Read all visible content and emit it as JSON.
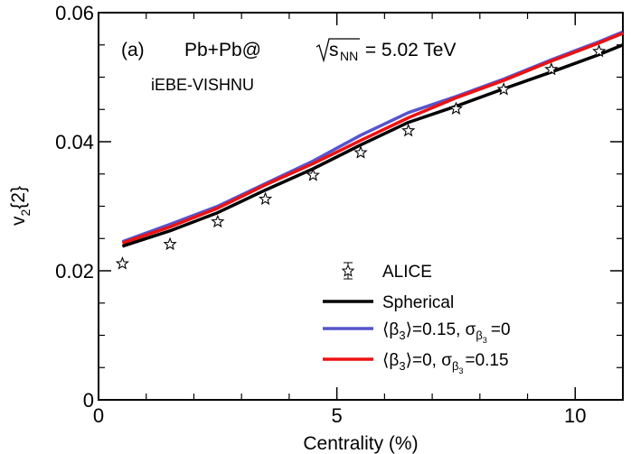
{
  "chart_data": {
    "type": "line",
    "xlabel": "Centrality (%)",
    "ylabel_main": "v",
    "ylabel_sub": "2",
    "ylabel_rest": "{2}",
    "xlim": [
      0,
      11
    ],
    "ylim": [
      0,
      0.06
    ],
    "xticks": [
      0,
      5,
      10
    ],
    "xtick_labels": [
      "0",
      "5",
      "10"
    ],
    "yticks": [
      0,
      0.02,
      0.04,
      0.06
    ],
    "ytick_labels": [
      "0",
      "0.02",
      "0.04",
      "0.06"
    ],
    "panel_label": "(a)",
    "system_prefix": "Pb+Pb@",
    "sqrt_s": "s",
    "sqrt_sub": "NN",
    "system_suffix": " = 5.02 TeV",
    "model_label": "iEBE-VISHNU",
    "series": [
      {
        "name": "Spherical",
        "color": "#000000",
        "x": [
          0.5,
          1.5,
          2.5,
          3.5,
          4.5,
          5.5,
          6.5,
          7.5,
          8.5,
          9.5,
          10.5,
          11.0
        ],
        "values": [
          0.0238,
          0.0262,
          0.029,
          0.0325,
          0.0358,
          0.0395,
          0.043,
          0.0455,
          0.0482,
          0.0508,
          0.0535,
          0.055
        ]
      },
      {
        "name": "⟨β3⟩=0.15, σβ3=0",
        "color": "#5555cc",
        "x": [
          0.5,
          1.5,
          2.5,
          3.5,
          4.5,
          5.5,
          6.5,
          7.5,
          8.5,
          9.5,
          10.5,
          11.0
        ],
        "values": [
          0.0245,
          0.0272,
          0.03,
          0.0335,
          0.037,
          0.041,
          0.0445,
          0.047,
          0.0497,
          0.0527,
          0.0555,
          0.057
        ]
      },
      {
        "name": "⟨β3⟩=0, σβ3=0.15",
        "color": "#ee1111",
        "x": [
          0.5,
          1.5,
          2.5,
          3.5,
          4.5,
          5.5,
          6.5,
          7.5,
          8.5,
          9.5,
          10.5,
          11.0
        ],
        "values": [
          0.0243,
          0.0268,
          0.0297,
          0.0333,
          0.0366,
          0.0402,
          0.0437,
          0.0468,
          0.0495,
          0.0525,
          0.0553,
          0.0568
        ]
      }
    ],
    "data_points": {
      "name": "ALICE",
      "x": [
        0.5,
        1.5,
        2.5,
        3.5,
        4.5,
        5.5,
        6.5,
        7.5,
        8.5,
        9.5,
        10.5
      ],
      "values": [
        0.0211,
        0.0241,
        0.0276,
        0.0311,
        0.0348,
        0.0383,
        0.0417,
        0.0451,
        0.0481,
        0.0512,
        0.054
      ]
    },
    "legend": {
      "position": "bottom-right",
      "alice": "ALICE",
      "spherical": "Spherical",
      "beta_open": "⟨β",
      "beta_sub": "3",
      "beta_close": "⟩",
      "sigma": "σ",
      "sigma_sub_main": "β",
      "sigma_sub_sub": "3",
      "blue_value_a": "=0.15, ",
      "blue_value_b": "=0",
      "red_value_a": "=0, ",
      "red_value_b": "=0.15"
    }
  }
}
